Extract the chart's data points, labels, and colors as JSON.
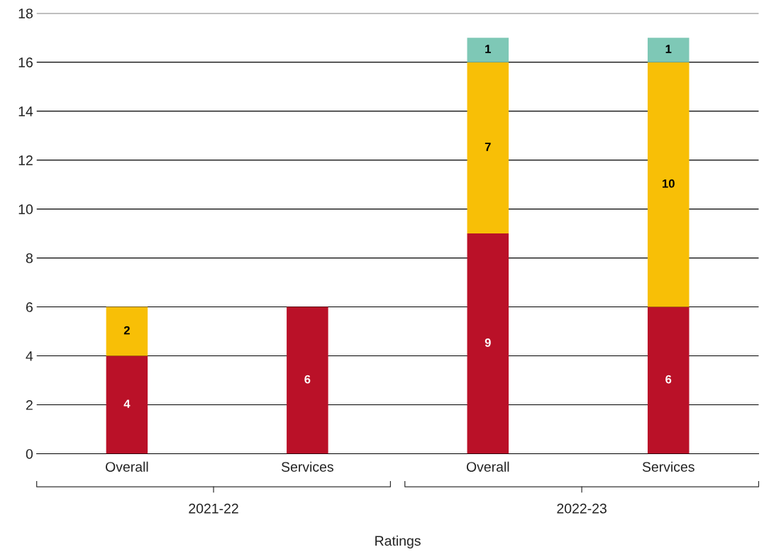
{
  "chart_data": {
    "type": "bar",
    "stacked": true,
    "xlabel": "Ratings",
    "categories": [
      "Overall",
      "Services",
      "Overall",
      "Services"
    ],
    "series": [
      {
        "color": "#ba1128",
        "values": [
          4,
          6,
          9,
          6
        ]
      },
      {
        "color": "#f8bf06",
        "values": [
          2,
          null,
          7,
          10
        ]
      },
      {
        "color": "#7ec8b6",
        "values": [
          null,
          null,
          1,
          1
        ]
      }
    ],
    "annotations": [
      "2021-22",
      "2022-23"
    ],
    "ylim": [
      0,
      18
    ],
    "yticks": [
      0,
      2,
      4,
      6,
      8,
      10,
      12,
      14,
      16,
      18
    ],
    "grid": "y",
    "data_labels": true,
    "legend": false
  }
}
